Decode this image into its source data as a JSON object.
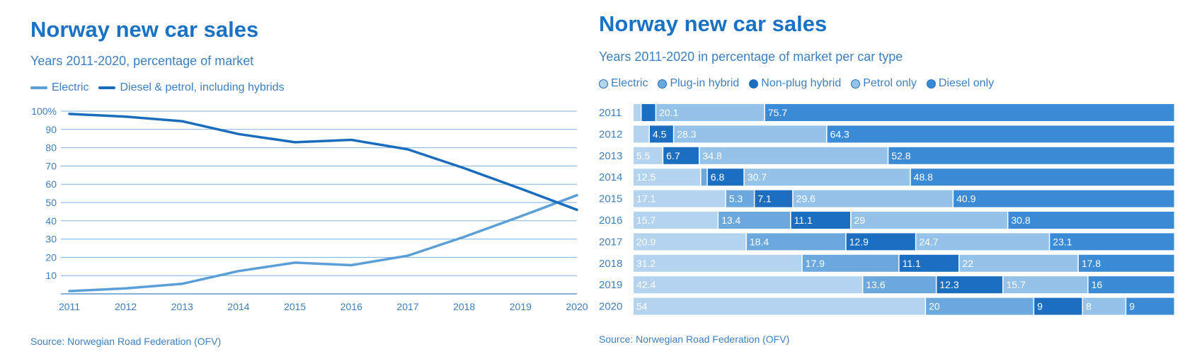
{
  "chart_data": [
    {
      "type": "line",
      "title": "Norway new car sales",
      "subtitle": "Years 2011-2020, percentage of market",
      "source": "Source: Norwegian Road Federation (OFV)",
      "x": [
        "2011",
        "2012",
        "2013",
        "2014",
        "2015",
        "2016",
        "2017",
        "2018",
        "2019",
        "2020"
      ],
      "y_ticks": [
        "100%",
        "90",
        "80",
        "70",
        "60",
        "50",
        "40",
        "30",
        "20",
        "10"
      ],
      "ylim": [
        0,
        100
      ],
      "grid": true,
      "legend_position": "top-left",
      "series": [
        {
          "name": "Electric",
          "color": "#5b9fd8",
          "values": [
            1.5,
            3,
            5.5,
            12.5,
            17.1,
            15.7,
            20.9,
            31.2,
            42.4,
            54
          ]
        },
        {
          "name": "Diesel & petrol, including hybrids",
          "color": "#1a6dbd",
          "values": [
            98.5,
            97,
            94.5,
            87.5,
            83,
            84.3,
            79.1,
            68.8,
            57.6,
            46
          ]
        }
      ]
    },
    {
      "type": "bar",
      "orientation": "horizontal",
      "stacked": true,
      "title": "Norway new car sales",
      "subtitle": "Years 2011-2020 in percentage of market per car type",
      "source": "Source: Norwegian Road Federation (OFV)",
      "categories": [
        "2011",
        "2012",
        "2013",
        "2014",
        "2015",
        "2016",
        "2017",
        "2018",
        "2019",
        "2020"
      ],
      "legend_position": "top-left",
      "series": [
        {
          "name": "Electric",
          "color": "#b3d3ee",
          "values": [
            1.5,
            3,
            5.5,
            12.5,
            17.1,
            15.7,
            20.9,
            31.2,
            42.4,
            54
          ],
          "labels": [
            "",
            "",
            "5.5",
            "12.5",
            "17.1",
            "15.7",
            "20.9",
            "31.2",
            "42.4",
            "54"
          ]
        },
        {
          "name": "Plug-in hybrid",
          "color": "#6aa8dd",
          "values": [
            0,
            0,
            0,
            1.2,
            5.3,
            13.4,
            18.4,
            17.9,
            13.6,
            20
          ],
          "labels": [
            "",
            "",
            "",
            "",
            "5.3",
            "13.4",
            "18.4",
            "17.9",
            "13.6",
            "20"
          ]
        },
        {
          "name": "Non-plug hybrid",
          "color": "#1c6fc0",
          "values": [
            2.7,
            4.5,
            6.7,
            6.8,
            7.1,
            11.1,
            12.9,
            11.1,
            12.3,
            9
          ],
          "labels": [
            "",
            "4.5",
            "6.7",
            "6.8",
            "7.1",
            "11.1",
            "12.9",
            "11.1",
            "12.3",
            "9"
          ]
        },
        {
          "name": "Petrol only",
          "color": "#95c2e8",
          "values": [
            20.1,
            28.3,
            34.8,
            30.7,
            29.6,
            29,
            24.7,
            22,
            15.7,
            8
          ],
          "labels": [
            "20.1",
            "28.3",
            "34.8",
            "30.7",
            "29.6",
            "29",
            "24.7",
            "22",
            "15.7",
            "8"
          ]
        },
        {
          "name": "Diesel only",
          "color": "#3a8ad6",
          "values": [
            75.7,
            64.3,
            52.8,
            48.8,
            40.9,
            30.8,
            23.1,
            17.8,
            16,
            9
          ],
          "labels": [
            "75.7",
            "64.3",
            "52.8",
            "48.8",
            "40.9",
            "30.8",
            "23.1",
            "17.8",
            "16",
            "9"
          ]
        }
      ]
    }
  ]
}
